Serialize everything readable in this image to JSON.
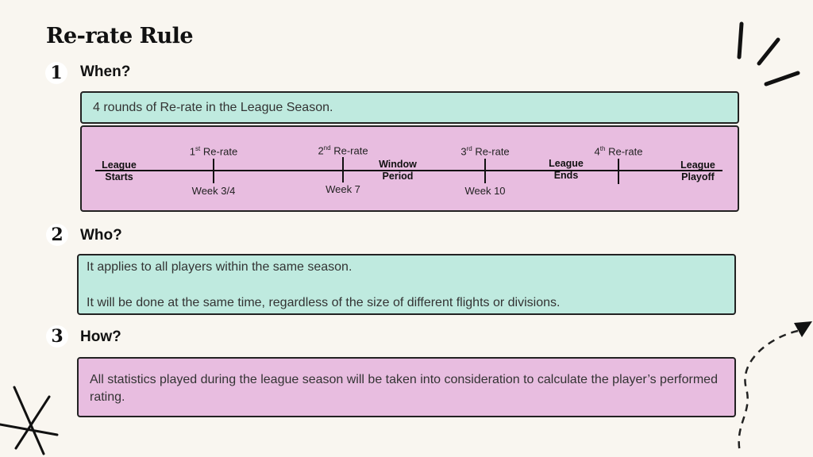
{
  "title": "Re-rate Rule",
  "sections": [
    {
      "number": "1",
      "heading": "When?",
      "text": "4 rounds of Re-rate in the League Season."
    },
    {
      "number": "2",
      "heading": "Who?",
      "text": "It applies to all players within the same season.",
      "text2": "It will be done at the same time, regardless of the size of different flights or divisions."
    },
    {
      "number": "3",
      "heading": "How?",
      "text": "All statistics played during the league season will be taken into consideration to calculate the player’s performed rating."
    }
  ],
  "timeline": {
    "milestones": [
      {
        "ord": "1",
        "sup": "st",
        "label": "Re-rate",
        "week": "Week 3/4"
      },
      {
        "ord": "2",
        "sup": "nd",
        "label": "Re-rate",
        "week": "Week 7"
      },
      {
        "ord": "3",
        "sup": "rd",
        "label": "Re-rate",
        "week": "Week 10"
      },
      {
        "ord": "4",
        "sup": "th",
        "label": "Re-rate",
        "week": ""
      }
    ],
    "phases": [
      {
        "line1": "League",
        "line2": "Starts"
      },
      {
        "line1": "Window",
        "line2": "Period"
      },
      {
        "line1": "League",
        "line2": "Ends"
      },
      {
        "line1": "League",
        "line2": "Playoff"
      }
    ]
  }
}
